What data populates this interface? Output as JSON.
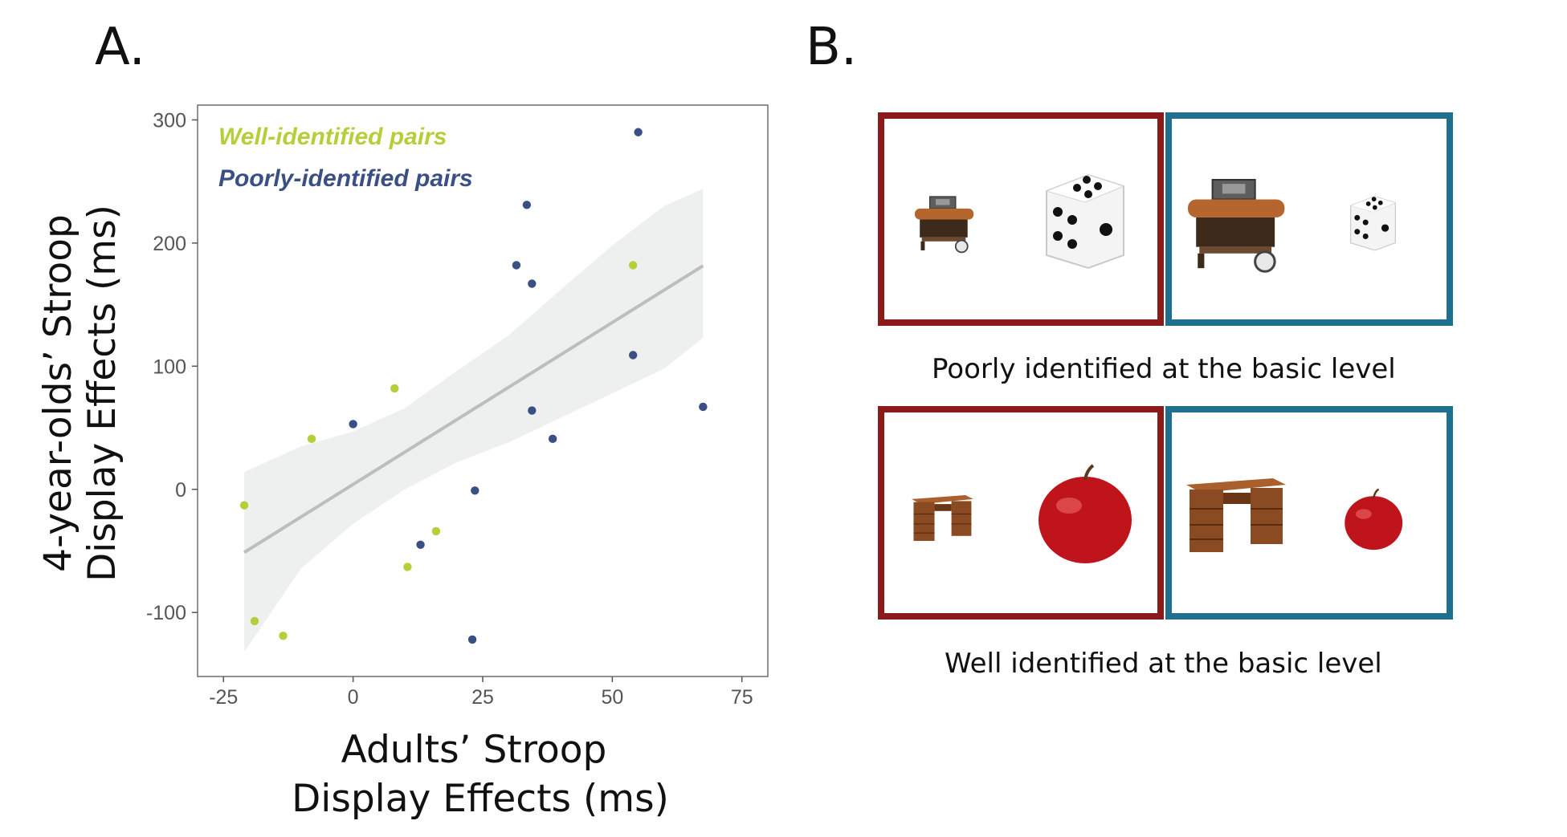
{
  "panels": {
    "a_label": "A.",
    "b_label": "B."
  },
  "colors": {
    "well": "#b5cf3a",
    "poorly": "#3a5085",
    "ribbon": "#eef0ef",
    "regression": "#bdbdbd",
    "frame_red": "#8b1a1a",
    "frame_blue": "#1f6f8f"
  },
  "chart_data": {
    "type": "scatter",
    "xlabel_lines": [
      "Adults’ Stroop",
      "Display Effects (ms)"
    ],
    "ylabel_lines": [
      "4-year-olds’ Stroop",
      "Display Effects (ms)"
    ],
    "xlim": [
      -30,
      80
    ],
    "ylim": [
      -152,
      312
    ],
    "x_ticks": [
      -25,
      0,
      25,
      50,
      75
    ],
    "y_ticks": [
      -100,
      0,
      100,
      200,
      300
    ],
    "x_tick_labels": [
      "-25",
      "0",
      "25",
      "50",
      "75"
    ],
    "y_tick_labels": [
      "-100",
      "0",
      "100",
      "200",
      "300"
    ],
    "grid": false,
    "legend_position": "top-left",
    "series": [
      {
        "name": "Well-identified pairs",
        "color": "#b5cf3a",
        "points": [
          [
            -21,
            -13
          ],
          [
            -19,
            -107
          ],
          [
            -13.5,
            -119
          ],
          [
            -8,
            41
          ],
          [
            8,
            82
          ],
          [
            10.5,
            -63
          ],
          [
            16,
            -34
          ],
          [
            54,
            182
          ]
        ]
      },
      {
        "name": "Poorly-identified pairs",
        "color": "#3a5085",
        "points": [
          [
            0,
            53
          ],
          [
            13,
            -45
          ],
          [
            23,
            -122
          ],
          [
            23.5,
            -1
          ],
          [
            31.5,
            182
          ],
          [
            33.5,
            231
          ],
          [
            34.5,
            167
          ],
          [
            34.5,
            64
          ],
          [
            38.5,
            41
          ],
          [
            54,
            109
          ],
          [
            55,
            290
          ],
          [
            67.5,
            67
          ]
        ]
      }
    ],
    "regression": {
      "x_range": [
        -21,
        67.5
      ],
      "intercept": 4.0,
      "slope": 2.63,
      "ci_band": [
        [
          -21,
          -132,
          14
        ],
        [
          -10,
          -64,
          35
        ],
        [
          0,
          -28,
          47
        ],
        [
          10,
          0,
          66
        ],
        [
          20,
          22,
          96
        ],
        [
          30,
          38,
          125
        ],
        [
          40,
          58,
          162
        ],
        [
          50,
          78,
          198
        ],
        [
          60,
          98,
          230
        ],
        [
          67.5,
          123,
          244
        ]
      ]
    }
  },
  "panel_b": {
    "rows": [
      {
        "caption": "Poorly identified at the basic level",
        "left_frame": {
          "object_1": "barbecue-grill",
          "object_2": "die"
        },
        "right_frame": {
          "object_1": "barbecue-grill",
          "object_2": "die"
        }
      },
      {
        "caption": "Well identified at the basic level",
        "left_frame": {
          "object_1": "desk",
          "object_2": "apple"
        },
        "right_frame": {
          "object_1": "desk",
          "object_2": "apple"
        }
      }
    ]
  }
}
